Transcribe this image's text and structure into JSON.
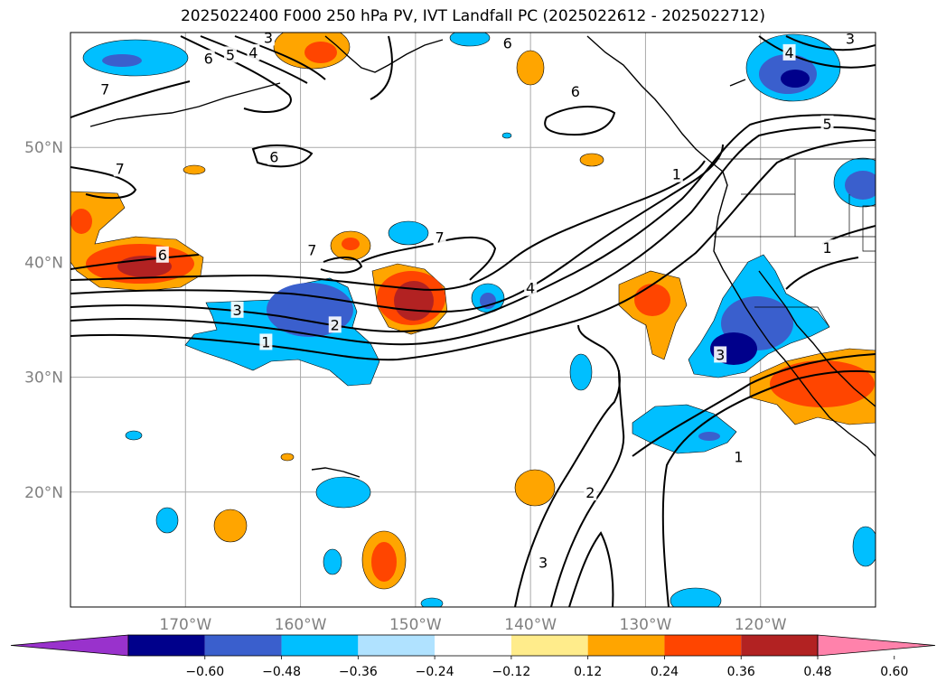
{
  "title": "2025022400 F000 250 hPa PV, IVT Landfall PC (2025022612 - 2025022712)",
  "map": {
    "lon_range": [
      -180,
      -110
    ],
    "lat_range": [
      10,
      60
    ],
    "lon_ticks": [
      {
        "value": -170,
        "label": "170°W"
      },
      {
        "value": -160,
        "label": "160°W"
      },
      {
        "value": -150,
        "label": "150°W"
      },
      {
        "value": -140,
        "label": "140°W"
      },
      {
        "value": -130,
        "label": "130°W"
      },
      {
        "value": -120,
        "label": "120°W"
      }
    ],
    "lat_ticks": [
      {
        "value": 20,
        "label": "20°N"
      },
      {
        "value": 30,
        "label": "30°N"
      },
      {
        "value": 40,
        "label": "40°N"
      },
      {
        "value": 50,
        "label": "50°N"
      }
    ],
    "gridlines": true,
    "contour_color": "#000000",
    "contour_labels": [
      {
        "text": "3",
        "lon": -165.5,
        "lat": 35.8
      },
      {
        "text": "2",
        "lon": -157,
        "lat": 34.5
      },
      {
        "text": "1",
        "lon": -163,
        "lat": 33
      },
      {
        "text": "6",
        "lon": -172,
        "lat": 40.6
      },
      {
        "text": "7",
        "lon": -159,
        "lat": 41
      },
      {
        "text": "7",
        "lon": -147.9,
        "lat": 42.1
      },
      {
        "text": "4",
        "lon": -140,
        "lat": 37.7
      },
      {
        "text": "6",
        "lon": -162.3,
        "lat": 49.1
      },
      {
        "text": "7",
        "lon": -175.7,
        "lat": 48.1
      },
      {
        "text": "7",
        "lon": -177,
        "lat": 55
      },
      {
        "text": "6",
        "lon": -168,
        "lat": 57.7
      },
      {
        "text": "5",
        "lon": -166.1,
        "lat": 58
      },
      {
        "text": "4",
        "lon": -164.1,
        "lat": 58.2
      },
      {
        "text": "3",
        "lon": -162.8,
        "lat": 59.5
      },
      {
        "text": "6",
        "lon": -142,
        "lat": 59
      },
      {
        "text": "6",
        "lon": -136.1,
        "lat": 54.8
      },
      {
        "text": "4",
        "lon": -117.5,
        "lat": 58.2
      },
      {
        "text": "3",
        "lon": -112.2,
        "lat": 59.4
      },
      {
        "text": "5",
        "lon": -114.2,
        "lat": 52
      },
      {
        "text": "1",
        "lon": -127.3,
        "lat": 47.6
      },
      {
        "text": "1",
        "lon": -114.2,
        "lat": 41.2
      },
      {
        "text": "1",
        "lon": -121.9,
        "lat": 23
      },
      {
        "text": "3",
        "lon": -123.5,
        "lat": 31.9
      },
      {
        "text": "2",
        "lon": -134.8,
        "lat": 19.9
      },
      {
        "text": "3",
        "lon": -138.9,
        "lat": 13.8
      }
    ]
  },
  "colorbar": {
    "colors": [
      "#9932cc",
      "#00008b",
      "#3a5fcd",
      "#00bfff",
      "#b0e2ff",
      "#ffffff",
      "#ffec8b",
      "#ffa500",
      "#ff4500",
      "#b22222",
      "#ff82ab"
    ],
    "tick_labels": [
      "−0.60",
      "−0.48",
      "−0.36",
      "−0.24",
      "−0.12",
      "0.12",
      "0.24",
      "0.36",
      "0.48",
      "0.60"
    ]
  }
}
